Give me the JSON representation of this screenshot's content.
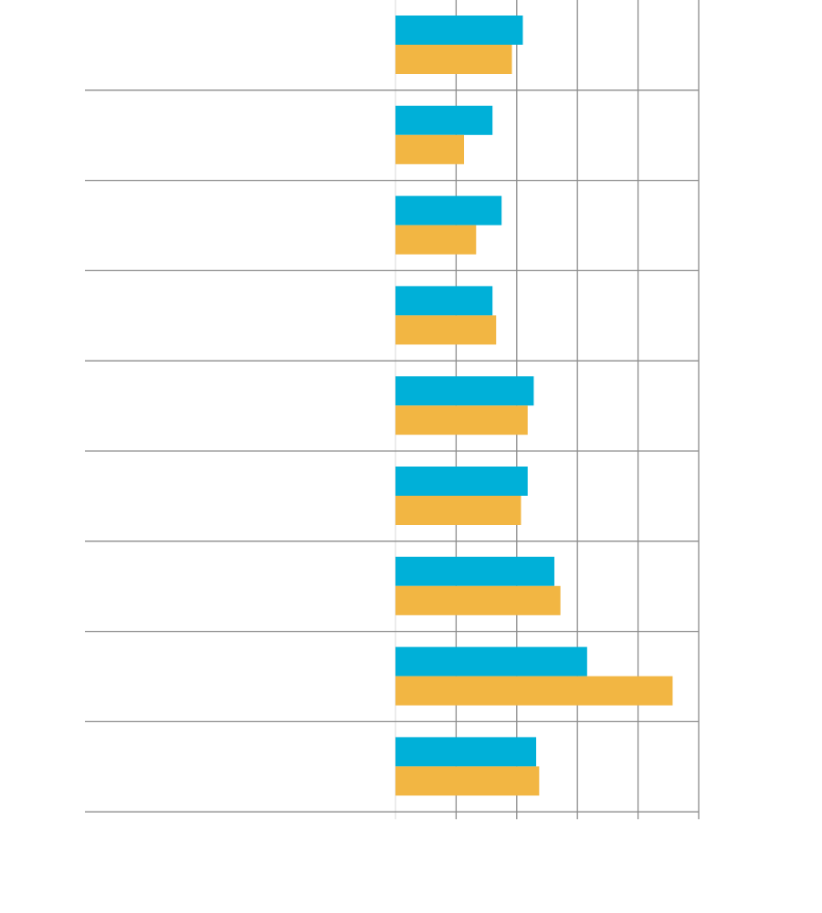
{
  "chart_data": {
    "type": "bar",
    "orientation": "horizontal",
    "categories": [
      "",
      "",
      "",
      "",
      "",
      "",
      "",
      "",
      ""
    ],
    "series": [
      {
        "values": [
          2.1,
          1.6,
          1.75,
          1.6,
          2.28,
          2.18,
          2.62,
          3.16,
          2.32
        ],
        "color": "#00b0d8"
      },
      {
        "values": [
          1.92,
          1.13,
          1.33,
          1.66,
          2.18,
          2.07,
          2.72,
          4.57,
          2.37
        ],
        "color": "#f2b643"
      }
    ],
    "xlim": [
      0,
      5
    ],
    "xticks": [
      0,
      1,
      2,
      3,
      4,
      5
    ],
    "grid": true,
    "gridline_color": "#8c8c8c",
    "legend": "none"
  }
}
